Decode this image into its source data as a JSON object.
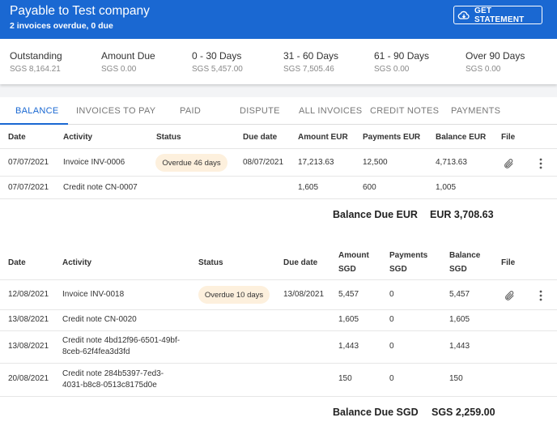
{
  "header": {
    "title": "Payable to Test company",
    "subtitle": "2 invoices overdue, 0 due",
    "statement_button": "GET STATEMENT"
  },
  "summary": [
    {
      "label": "Outstanding",
      "value": "SGS 8,164.21"
    },
    {
      "label": "Amount Due",
      "value": "SGS 0.00"
    },
    {
      "label": "0 - 30 Days",
      "value": "SGS 5,457.00"
    },
    {
      "label": "31 - 60 Days",
      "value": "SGS 7,505.46"
    },
    {
      "label": "61 - 90 Days",
      "value": "SGS 0.00"
    },
    {
      "label": "Over 90 Days",
      "value": "SGS 0.00"
    }
  ],
  "tabs": [
    "BALANCE",
    "INVOICES TO PAY",
    "PAID",
    "DISPUTE",
    "ALL INVOICES",
    "CREDIT NOTES",
    "PAYMENTS"
  ],
  "eur": {
    "headers": {
      "date": "Date",
      "activity": "Activity",
      "status": "Status",
      "due": "Due date",
      "amount": "Amount EUR",
      "payments": "Payments EUR",
      "balance": "Balance EUR",
      "file": "File"
    },
    "rows": [
      {
        "date": "07/07/2021",
        "activity": "Invoice INV-0006",
        "status": "Overdue 46 days",
        "due": "08/07/2021",
        "amount": "17,213.63",
        "payments": "12,500",
        "balance": "4,713.63"
      },
      {
        "date": "07/07/2021",
        "activity": "Credit note CN-0007",
        "status": "",
        "due": "",
        "amount": "1,605",
        "payments": "600",
        "balance": "1,005"
      }
    ],
    "balance_label": "Balance Due EUR",
    "balance_value": "EUR 3,708.63"
  },
  "sgd": {
    "headers": {
      "date": "Date",
      "activity": "Activity",
      "status": "Status",
      "due": "Due date",
      "amount_1": "Amount",
      "amount_2": "SGD",
      "payments_1": "Payments",
      "payments_2": "SGD",
      "balance_1": "Balance",
      "balance_2": "SGD",
      "file": "File"
    },
    "rows": [
      {
        "date": "12/08/2021",
        "activity": "Invoice INV-0018",
        "status": "Overdue 10 days",
        "due": "13/08/2021",
        "amount": "5,457",
        "payments": "0",
        "balance": "5,457"
      },
      {
        "date": "13/08/2021",
        "activity": "Credit note CN-0020",
        "status": "",
        "due": "",
        "amount": "1,605",
        "payments": "0",
        "balance": "1,605"
      },
      {
        "date": "13/08/2021",
        "activity_1": "Credit note 4bd12f96-6501-49bf-",
        "activity_2": "8ceb-62f4fea3d3fd",
        "status": "",
        "due": "",
        "amount": "1,443",
        "payments": "0",
        "balance": "1,443"
      },
      {
        "date": "20/08/2021",
        "activity_1": "Credit note 284b5397-7ed3-",
        "activity_2": "4031-b8c8-0513c8175d0e",
        "status": "",
        "due": "",
        "amount": "150",
        "payments": "0",
        "balance": "150"
      }
    ],
    "balance_label": "Balance Due SGD",
    "balance_value": "SGS 2,259.00"
  }
}
